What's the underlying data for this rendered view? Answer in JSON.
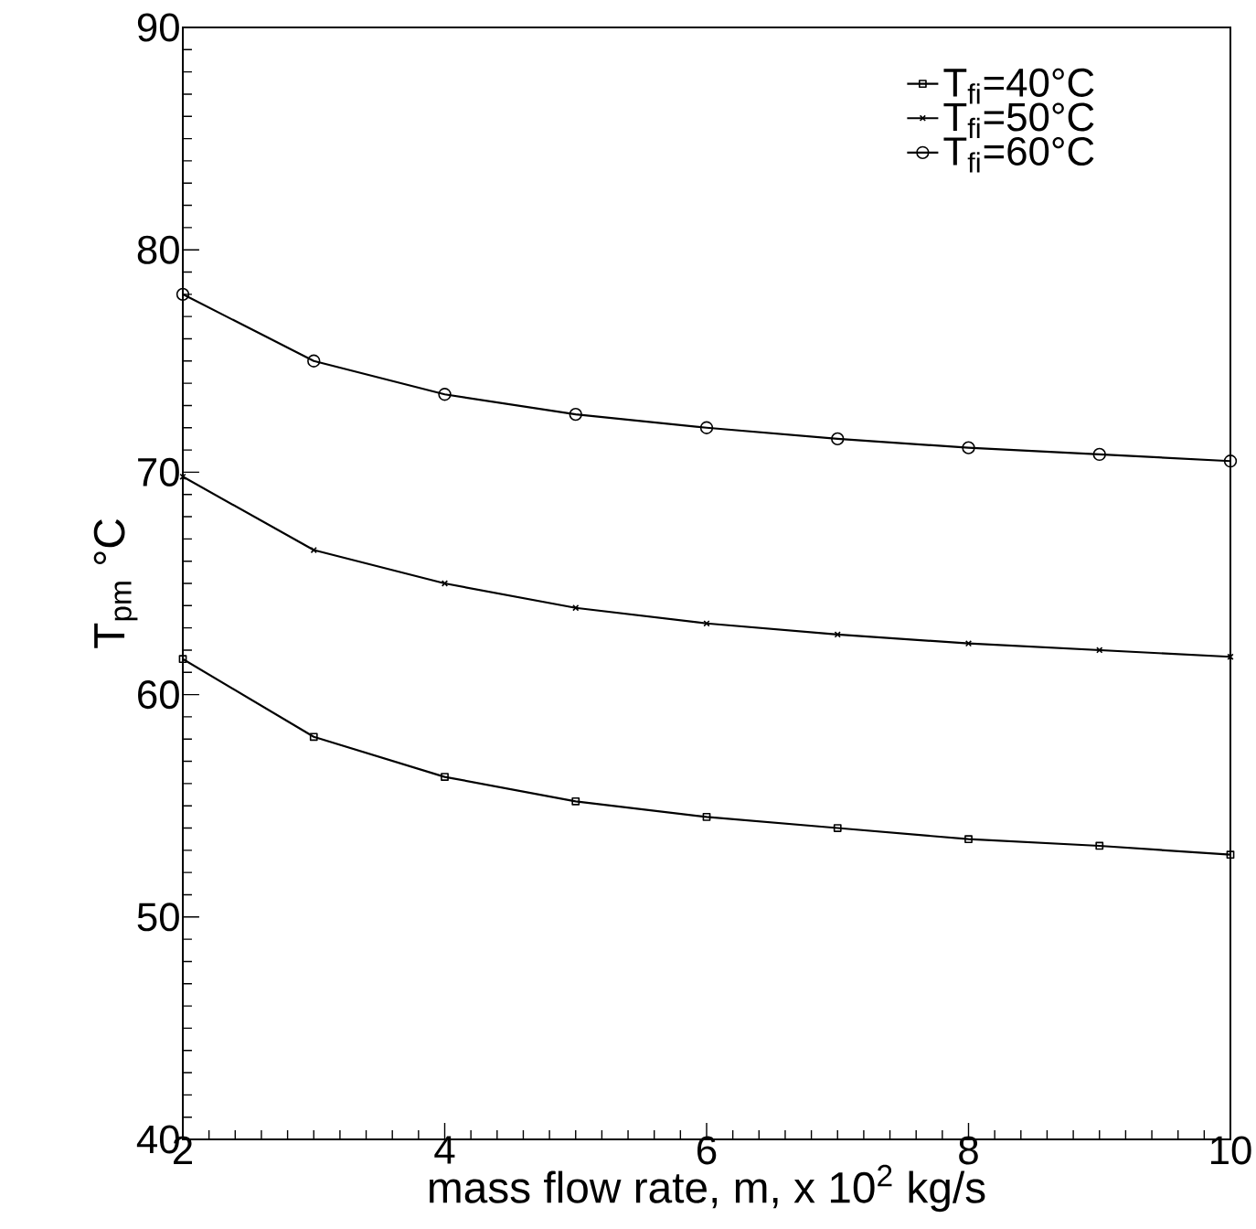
{
  "chart_data": {
    "type": "line",
    "xlabel": "mass flow rate, m, x 10$^{2}$ kg/s",
    "ylabel": "T$_{pm}$ °C",
    "x": [
      2,
      3,
      4,
      5,
      6,
      7,
      8,
      9,
      10
    ],
    "series": [
      {
        "name": "T$_{fi}$=40°C",
        "color": "#000000",
        "marker": "square",
        "values": [
          61.6,
          58.1,
          56.3,
          55.2,
          54.5,
          54.0,
          53.5,
          53.2,
          52.8
        ]
      },
      {
        "name": "T$_{fi}$=50°C",
        "color": "#000000",
        "marker": "cross",
        "values": [
          69.8,
          66.5,
          65.0,
          63.9,
          63.2,
          62.7,
          62.3,
          62.0,
          61.7
        ]
      },
      {
        "name": "T$_{fi}$=60°C",
        "color": "#000000",
        "marker": "circle",
        "values": [
          78.0,
          75.0,
          73.5,
          72.6,
          72.0,
          71.5,
          71.1,
          70.8,
          70.5
        ]
      }
    ],
    "xlim": [
      2,
      10
    ],
    "xticks": [
      2,
      4,
      6,
      8,
      10
    ],
    "ylim": [
      40,
      90
    ],
    "yticks": [
      40,
      50,
      60,
      70,
      80,
      90
    ],
    "grid": false,
    "legend": "top right",
    "line_style": "solid"
  }
}
